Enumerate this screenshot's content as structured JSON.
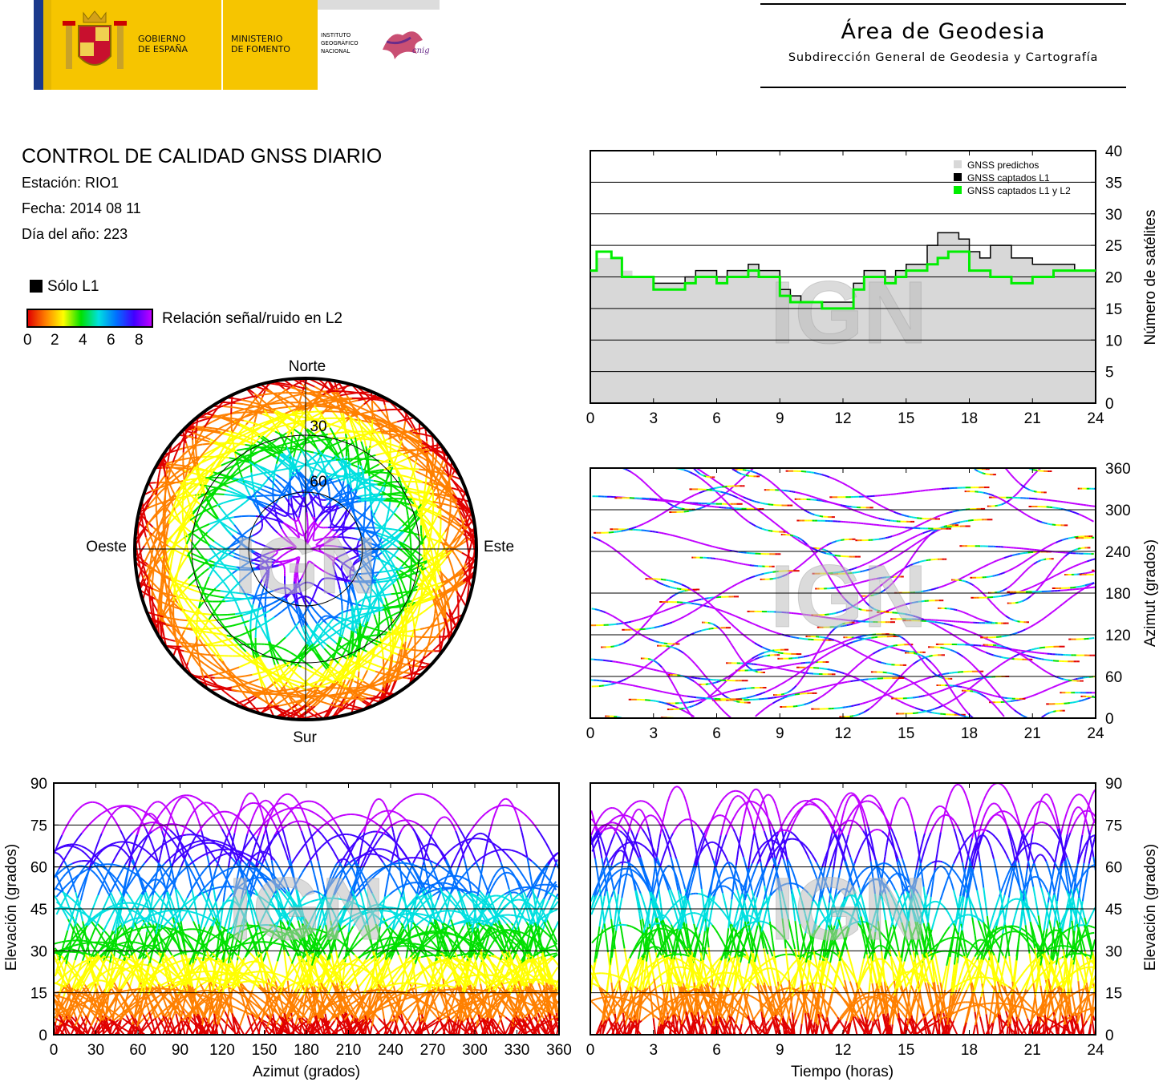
{
  "header": {
    "gov_left_1": "GOBIERNO",
    "gov_left_2": "DE ESPAÑA",
    "ministry_1": "MINISTERIO",
    "ministry_2": "DE FOMENTO",
    "ign_1": "INSTITUTO",
    "ign_2": "GEOGRÁFICO",
    "ign_3": "NACIONAL",
    "cnig": "cnig",
    "area_title": "Área de Geodesia",
    "area_subtitle": "Subdirección General de Geodesia y Cartografía"
  },
  "info": {
    "title": "CONTROL DE CALIDAD GNSS DIARIO",
    "station": "Estación: RIO1",
    "date": "Fecha: 2014 08 11",
    "doy": "Día del año: 223"
  },
  "legend": {
    "only_l1": "Sólo L1",
    "snr_label": "Relación señal/ruido en L2",
    "snr_ticks": [
      "0",
      "2",
      "4",
      "6",
      "8"
    ],
    "colors": [
      "#e00000",
      "#ff8000",
      "#ffff00",
      "#00e000",
      "#00e0e0",
      "#0070ff",
      "#4000ff",
      "#c000ff"
    ]
  },
  "watermark": "IGN",
  "chart_data": [
    {
      "id": "satellites",
      "type": "area",
      "ylabel": "Número de satélites",
      "x_ticks": [
        "0",
        "3",
        "6",
        "9",
        "12",
        "15",
        "18",
        "21",
        "24"
      ],
      "y_ticks": [
        "0",
        "5",
        "10",
        "15",
        "20",
        "25",
        "30",
        "35",
        "40"
      ],
      "xlim": [
        0,
        24
      ],
      "ylim": [
        0,
        40
      ],
      "legend_position": "top-right",
      "legend": [
        "GNSS predichos",
        "GNSS captados L1",
        "GNSS captados L1 y L2"
      ],
      "series": [
        {
          "name": "GNSS predichos",
          "color": "#d8d8d8",
          "x": [
            0,
            0.3,
            1,
            1.5,
            2,
            3,
            4,
            4.5,
            5,
            6,
            6.5,
            7,
            7.5,
            8,
            9,
            9.5,
            10,
            11,
            12,
            12.5,
            13,
            14,
            14.5,
            15,
            16,
            16.5,
            17,
            17.5,
            18,
            18.5,
            19,
            20,
            21,
            22,
            23,
            24
          ],
          "y": [
            21,
            23,
            23,
            21,
            20,
            19,
            19,
            20,
            21,
            20,
            21,
            21,
            22,
            21,
            18,
            17,
            16,
            16,
            16,
            19,
            21,
            20,
            21,
            22,
            25,
            27,
            27,
            26,
            24,
            23,
            25,
            23,
            22,
            22,
            21,
            21
          ]
        },
        {
          "name": "GNSS captados L1",
          "color": "#000000",
          "x": [
            0,
            0.3,
            1,
            1.5,
            2,
            3,
            4,
            4.5,
            5,
            6,
            6.5,
            7,
            7.5,
            8,
            9,
            9.5,
            10,
            11,
            12,
            12.5,
            13,
            14,
            14.5,
            15,
            16,
            16.5,
            17,
            17.5,
            18,
            18.5,
            19,
            20,
            21,
            22,
            23,
            24
          ],
          "y": [
            21,
            24,
            23,
            20,
            20,
            19,
            19,
            20,
            21,
            20,
            21,
            21,
            22,
            21,
            18,
            17,
            16,
            16,
            16,
            19,
            21,
            20,
            21,
            22,
            25,
            27,
            27,
            26,
            24,
            23,
            25,
            23,
            22,
            22,
            21,
            21
          ]
        },
        {
          "name": "GNSS captados L1 y L2",
          "color": "#00ee00",
          "x": [
            0,
            0.3,
            1,
            1.5,
            2,
            3,
            4,
            4.5,
            5,
            6,
            6.5,
            7,
            7.5,
            8,
            9,
            9.5,
            10,
            11,
            12,
            12.5,
            13,
            14,
            14.5,
            15,
            16,
            16.5,
            17,
            17.5,
            18,
            18.5,
            19,
            20,
            21,
            22,
            23,
            24
          ],
          "y": [
            21,
            24,
            23,
            20,
            20,
            18,
            18,
            19,
            20,
            19,
            20,
            20,
            21,
            20,
            17,
            16,
            16,
            15,
            15,
            18,
            20,
            19,
            20,
            21,
            22,
            23,
            24,
            24,
            21,
            21,
            20,
            19,
            20,
            21,
            21,
            21
          ]
        }
      ]
    },
    {
      "id": "azimuth-time",
      "type": "scatter",
      "ylabel": "Azimut (grados)",
      "x_ticks": [
        "0",
        "3",
        "6",
        "9",
        "12",
        "15",
        "18",
        "21",
        "24"
      ],
      "y_ticks": [
        "0",
        "60",
        "120",
        "180",
        "240",
        "300",
        "360"
      ],
      "xlim": [
        0,
        24
      ],
      "ylim": [
        0,
        360
      ]
    },
    {
      "id": "skyplot",
      "type": "scatter",
      "cardinal": {
        "north": "Norte",
        "south": "Sur",
        "west": "Oeste",
        "east": "Este"
      },
      "ring_labels": [
        "30",
        "60"
      ]
    },
    {
      "id": "elevation-azimuth",
      "type": "scatter",
      "xlabel": "Azimut (grados)",
      "ylabel": "Elevación (grados)",
      "x_ticks": [
        "0",
        "30",
        "60",
        "90",
        "120",
        "150",
        "180",
        "210",
        "240",
        "270",
        "300",
        "330",
        "360"
      ],
      "y_ticks": [
        "0",
        "15",
        "30",
        "45",
        "60",
        "75",
        "90"
      ],
      "xlim": [
        0,
        360
      ],
      "ylim": [
        0,
        90
      ]
    },
    {
      "id": "elevation-time",
      "type": "scatter",
      "xlabel": "Tiempo (horas)",
      "ylabel": "Elevación (grados)",
      "x_ticks": [
        "0",
        "3",
        "6",
        "9",
        "12",
        "15",
        "18",
        "21",
        "24"
      ],
      "y_ticks": [
        "0",
        "15",
        "30",
        "45",
        "60",
        "75",
        "90"
      ],
      "xlim": [
        0,
        24
      ],
      "ylim": [
        0,
        90
      ]
    }
  ]
}
